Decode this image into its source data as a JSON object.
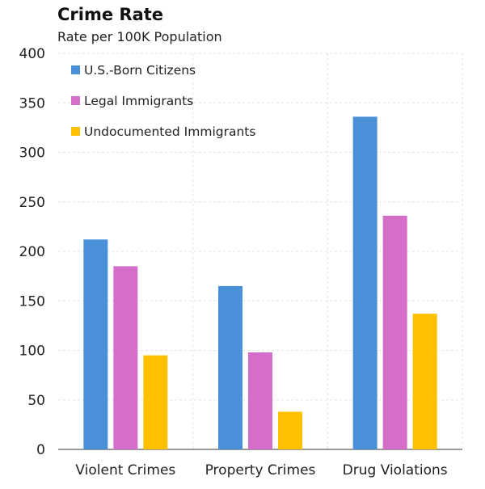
{
  "chart_data": {
    "type": "bar",
    "title": "Crime Rate",
    "subtitle": "Rate per 100K Population",
    "xlabel": "",
    "ylabel": "",
    "categories": [
      "Violent Crimes",
      "Property Crimes",
      "Drug Violations"
    ],
    "series": [
      {
        "name": "U.S.-Born Citizens",
        "color": "#4a90d9",
        "values": [
          212,
          165,
          336
        ]
      },
      {
        "name": "Legal Immigrants",
        "color": "#d46ec8",
        "values": [
          185,
          98,
          236
        ]
      },
      {
        "name": "Undocumented Immigrants",
        "color": "#ffc000",
        "values": [
          95,
          38,
          137
        ]
      }
    ],
    "ylim": [
      0,
      400
    ],
    "yticks": [
      0,
      50,
      100,
      150,
      200,
      250,
      300,
      350,
      400
    ],
    "grid": true,
    "legend": "top-left"
  }
}
